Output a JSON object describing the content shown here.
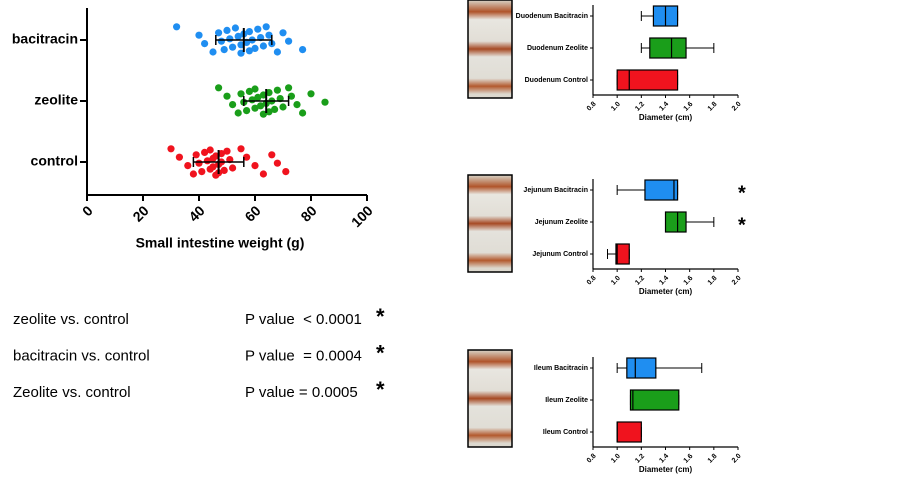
{
  "chart_data": [
    {
      "type": "strip",
      "xlabel": "Small intestine weight (g)",
      "xlim": [
        0,
        100
      ],
      "xticks": [
        0,
        20,
        40,
        60,
        80,
        100
      ],
      "categories": [
        "bacitracin",
        "zeolite",
        "control"
      ],
      "series": [
        {
          "name": "bacitracin",
          "color": "#1f8ef1",
          "mean": 56,
          "sd": 10,
          "values": [
            32,
            40,
            42,
            45,
            47,
            48,
            49,
            50,
            51,
            52,
            53,
            54,
            55,
            55,
            56,
            57,
            58,
            58,
            59,
            60,
            61,
            62,
            63,
            64,
            65,
            66,
            68,
            70,
            72,
            77
          ]
        },
        {
          "name": "zeolite",
          "color": "#1a9e1a",
          "mean": 64,
          "sd": 8,
          "values": [
            47,
            50,
            52,
            54,
            55,
            56,
            57,
            58,
            59,
            60,
            60,
            61,
            62,
            63,
            63,
            64,
            65,
            65,
            66,
            67,
            68,
            69,
            70,
            72,
            73,
            75,
            77,
            80,
            85
          ]
        },
        {
          "name": "control",
          "color": "#f0131e",
          "mean": 47,
          "sd": 9,
          "values": [
            30,
            33,
            36,
            38,
            39,
            40,
            41,
            42,
            43,
            44,
            44,
            45,
            45,
            46,
            46,
            47,
            47,
            48,
            48,
            49,
            50,
            51,
            52,
            55,
            57,
            60,
            63,
            66,
            68,
            71
          ]
        }
      ]
    },
    {
      "type": "box",
      "xlabel": "Diameter (cm)",
      "xlim": [
        0.8,
        2.0
      ],
      "xticks": [
        0.8,
        {
          "value": 1,
          "label": "1.0"
        },
        1.2,
        1.4,
        1.6,
        1.8,
        {
          "value": 2,
          "label": "2.0"
        }
      ],
      "categories": [
        "Duodenum Bacitracin",
        "Duodenum Zeolite",
        "Duodenum Control"
      ],
      "colors": [
        "#1f8ef1",
        "#1a9e1a",
        "#f0131e"
      ],
      "boxes": [
        {
          "min": 1.2,
          "q1": 1.3,
          "median": 1.4,
          "q3": 1.5,
          "max": 1.5
        },
        {
          "min": 1.2,
          "q1": 1.27,
          "median": 1.45,
          "q3": 1.57,
          "max": 1.8
        },
        {
          "min": 1.0,
          "q1": 1.0,
          "median": 1.1,
          "q3": 1.5,
          "max": 1.5
        }
      ]
    },
    {
      "type": "box",
      "xlabel": "Diameter (cm)",
      "xlim": [
        0.8,
        2.0
      ],
      "xticks": [
        0.8,
        {
          "value": 1,
          "label": "1.0"
        },
        1.2,
        1.4,
        1.6,
        1.8,
        {
          "value": 2,
          "label": "2.0"
        }
      ],
      "categories": [
        "Jejunum Bacitracin",
        "Jejunum Zeolite",
        "Jejunum Control"
      ],
      "colors": [
        "#1f8ef1",
        "#1a9e1a",
        "#f0131e"
      ],
      "boxes": [
        {
          "min": 1.0,
          "q1": 1.23,
          "median": 1.47,
          "q3": 1.5,
          "max": 1.5
        },
        {
          "min": 1.4,
          "q1": 1.4,
          "median": 1.5,
          "q3": 1.57,
          "max": 1.8
        },
        {
          "min": 0.92,
          "q1": 0.99,
          "median": 1.0,
          "q3": 1.1,
          "max": 1.1
        }
      ],
      "annotations": [
        {
          "text": "*",
          "category": "Jejunum Bacitracin"
        },
        {
          "text": "*",
          "category": "Jejunum Zeolite"
        }
      ]
    },
    {
      "type": "box",
      "xlabel": "Diameter (cm)",
      "xlim": [
        0.8,
        2.0
      ],
      "xticks": [
        0.8,
        {
          "value": 1,
          "label": "1.0"
        },
        1.2,
        1.4,
        1.6,
        1.8,
        {
          "value": 2,
          "label": "2.0"
        }
      ],
      "categories": [
        "Ileum Bacitracin",
        "Ileum Zeolite",
        "Ileum  Control"
      ],
      "colors": [
        "#1f8ef1",
        "#1a9e1a",
        "#f0131e"
      ],
      "boxes": [
        {
          "min": 1.0,
          "q1": 1.08,
          "median": 1.15,
          "q3": 1.32,
          "max": 1.7
        },
        {
          "min": 1.11,
          "q1": 1.11,
          "median": 1.13,
          "q3": 1.51,
          "max": 1.51
        },
        {
          "min": 1.0,
          "q1": 1.0,
          "median": 1.0,
          "q3": 1.2,
          "max": 1.2
        }
      ]
    }
  ],
  "comparisons": [
    {
      "label": "zeolite vs. control",
      "p": "P value  < 0.0001",
      "mark": "*"
    },
    {
      "label": "bacitracin vs. control",
      "p": "P value  = 0.0004",
      "mark": "*"
    },
    {
      "label": "Zeolite vs. control",
      "p": "P value = 0.0005",
      "mark": "*"
    }
  ]
}
